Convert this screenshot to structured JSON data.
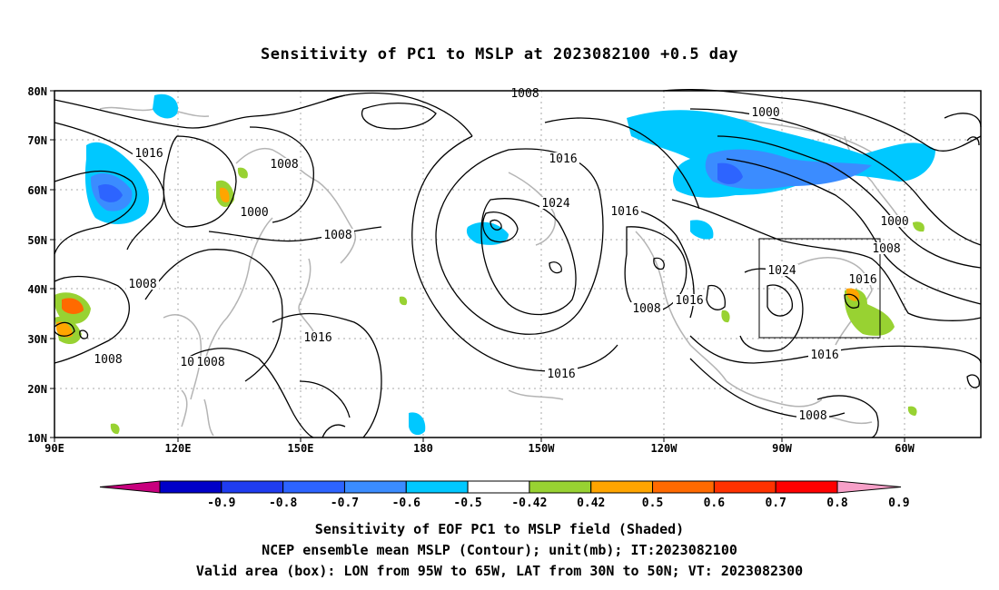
{
  "title": "Sensitivity of PC1 to MSLP at 2023082100 +0.5 day",
  "map": {
    "lon_labels": [
      "90E",
      "120E",
      "150E",
      "180",
      "150W",
      "120W",
      "90W",
      "60W"
    ],
    "lat_labels": [
      "80N",
      "70N",
      "60N",
      "50N",
      "40N",
      "30N",
      "20N",
      "10N"
    ],
    "contour_labels": [
      {
        "text": "1008"
      },
      {
        "text": "1016"
      },
      {
        "text": "1008"
      },
      {
        "text": "1000"
      },
      {
        "text": "1008"
      },
      {
        "text": "1008"
      },
      {
        "text": "1016"
      },
      {
        "text": "1008"
      },
      {
        "text": "1008"
      },
      {
        "text": "1016"
      },
      {
        "text": "1024"
      },
      {
        "text": "1016"
      },
      {
        "text": "1016"
      },
      {
        "text": "1000"
      },
      {
        "text": "1000"
      },
      {
        "text": "1008"
      },
      {
        "text": "1024"
      },
      {
        "text": "1016"
      },
      {
        "text": "1016"
      },
      {
        "text": "1008"
      },
      {
        "text": "1016"
      },
      {
        "text": "1008"
      },
      {
        "text": "1008"
      }
    ],
    "valid_box": {
      "lon_from": "95W",
      "lon_to": "65W",
      "lat_from": "30N",
      "lat_to": "50N"
    }
  },
  "colorbar": {
    "labels": [
      "-0.9",
      "-0.8",
      "-0.7",
      "-0.6",
      "-0.5",
      "-0.42",
      "0.42",
      "0.5",
      "0.6",
      "0.7",
      "0.8",
      "0.9"
    ],
    "colors": [
      "#c8007e",
      "#0000c8",
      "#1f3cf0",
      "#2d64ff",
      "#3b8cff",
      "#00c8ff",
      "#ffffff",
      "#98d232",
      "#ffa500",
      "#ff6a00",
      "#ff3200",
      "#ff0000",
      "#f7a0c8"
    ]
  },
  "captions": {
    "line1": "Sensitivity of EOF PC1 to MSLP field (Shaded)",
    "line2": "NCEP ensemble mean MSLP (Contour); unit(mb); IT:2023082100",
    "line3": "Valid area (box): LON from 95W to 65W, LAT from 30N to 50N; VT: 2023082300"
  }
}
